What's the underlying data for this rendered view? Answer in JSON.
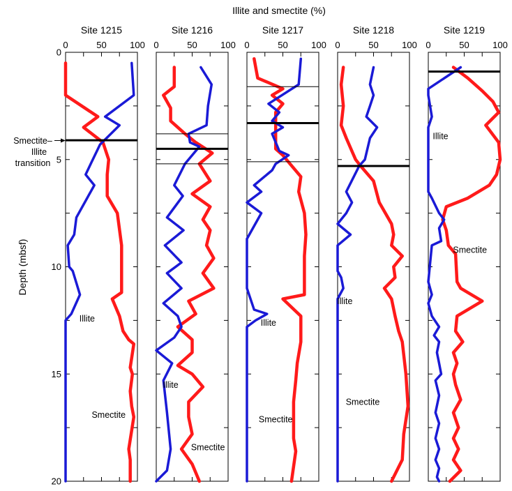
{
  "chart_data": {
    "type": "line",
    "title": "Illite and smectite (%)",
    "ylabel": "Depth (mbsf)",
    "y_range": [
      0,
      20
    ],
    "x_range": [
      0,
      100
    ],
    "y_ticks": [
      "0",
      "5",
      "10",
      "15",
      "20"
    ],
    "x_ticks": [
      "0",
      "50",
      "100"
    ],
    "colors": {
      "illite": "#1a1ad6",
      "smectite": "#ff1a1a",
      "transition": "#000000",
      "thin": "#000000"
    },
    "transition_annotation": {
      "line1": "Smectite–",
      "line2": "Illite",
      "line3": "transition"
    },
    "panels": [
      {
        "site": "Site 1215",
        "transitions_thick": [
          4.1
        ],
        "transitions_thin": [],
        "labels": [
          {
            "text": "Illite",
            "x": 30,
            "y": 12.4
          },
          {
            "text": "Smectite",
            "x": 60,
            "y": 16.9
          }
        ],
        "illite": [
          [
            92,
            0.5
          ],
          [
            95,
            2
          ],
          [
            55,
            3
          ],
          [
            75,
            3.4
          ],
          [
            48,
            4.3
          ],
          [
            35,
            5.2
          ],
          [
            28,
            5.7
          ],
          [
            40,
            6.2
          ],
          [
            30,
            6.8
          ],
          [
            15,
            7.7
          ],
          [
            12,
            8.5
          ],
          [
            3,
            9
          ],
          [
            5,
            10
          ],
          [
            10,
            10.2
          ],
          [
            20,
            11.3
          ],
          [
            8,
            12.2
          ],
          [
            0,
            12.5
          ],
          [
            0,
            20
          ]
        ],
        "smectite": [
          [
            0,
            0.5
          ],
          [
            0,
            2
          ],
          [
            45,
            3
          ],
          [
            25,
            3.5
          ],
          [
            52,
            4.2
          ],
          [
            60,
            5
          ],
          [
            58,
            5.7
          ],
          [
            58,
            6.7
          ],
          [
            72,
            7.5
          ],
          [
            78,
            9
          ],
          [
            78,
            11.2
          ],
          [
            65,
            11.5
          ],
          [
            75,
            12.3
          ],
          [
            80,
            13
          ],
          [
            88,
            13.4
          ],
          [
            95,
            13.6
          ],
          [
            90,
            14.7
          ],
          [
            93,
            15
          ],
          [
            90,
            15.8
          ],
          [
            92,
            16.5
          ],
          [
            95,
            17
          ],
          [
            88,
            18.5
          ],
          [
            90,
            19
          ],
          [
            90,
            20
          ]
        ]
      },
      {
        "site": "Site 1216",
        "transitions_thick": [
          4.5
        ],
        "transitions_thin": [
          3.8,
          5.2
        ],
        "labels": [
          {
            "text": "Illite",
            "x": 20,
            "y": 15.5
          },
          {
            "text": "Smectite",
            "x": 72,
            "y": 18.4
          }
        ],
        "illite": [
          [
            62,
            0.7
          ],
          [
            77,
            1.5
          ],
          [
            72,
            2.5
          ],
          [
            70,
            3.4
          ],
          [
            45,
            3.8
          ],
          [
            47,
            4.2
          ],
          [
            60,
            4.4
          ],
          [
            40,
            5.2
          ],
          [
            25,
            6.2
          ],
          [
            37,
            6.7
          ],
          [
            15,
            7.7
          ],
          [
            38,
            8.3
          ],
          [
            12,
            9
          ],
          [
            35,
            9.8
          ],
          [
            15,
            10.3
          ],
          [
            35,
            11
          ],
          [
            10,
            11.7
          ],
          [
            30,
            12.3
          ],
          [
            35,
            12.8
          ],
          [
            25,
            13.3
          ],
          [
            0,
            13.9
          ],
          [
            22,
            14.5
          ],
          [
            10,
            15.3
          ],
          [
            15,
            16.8
          ],
          [
            20,
            18.5
          ],
          [
            15,
            19.5
          ],
          [
            0,
            20
          ]
        ],
        "smectite": [
          [
            25,
            0.7
          ],
          [
            25,
            1.6
          ],
          [
            10,
            2
          ],
          [
            20,
            2.6
          ],
          [
            20,
            3.2
          ],
          [
            40,
            3.8
          ],
          [
            55,
            4.2
          ],
          [
            78,
            4.7
          ],
          [
            60,
            5.2
          ],
          [
            75,
            6
          ],
          [
            50,
            6.6
          ],
          [
            75,
            7.2
          ],
          [
            65,
            7.8
          ],
          [
            75,
            8.3
          ],
          [
            70,
            9
          ],
          [
            80,
            9.6
          ],
          [
            65,
            10.3
          ],
          [
            80,
            11
          ],
          [
            45,
            11.6
          ],
          [
            55,
            12.2
          ],
          [
            30,
            12.8
          ],
          [
            50,
            13.4
          ],
          [
            50,
            14
          ],
          [
            30,
            14.6
          ],
          [
            50,
            15
          ],
          [
            65,
            15.6
          ],
          [
            45,
            16.3
          ],
          [
            45,
            17
          ],
          [
            50,
            17.8
          ],
          [
            35,
            18.5
          ],
          [
            50,
            19.2
          ],
          [
            60,
            20
          ]
        ]
      },
      {
        "site": "Site 1217",
        "transitions_thick": [
          3.3
        ],
        "transitions_thin": [
          1.6,
          5.1
        ],
        "labels": [
          {
            "text": "Illite",
            "x": 30,
            "y": 12.6
          },
          {
            "text": "Smectite",
            "x": 40,
            "y": 17.1
          }
        ],
        "illite": [
          [
            75,
            0.3
          ],
          [
            72,
            1.5
          ],
          [
            30,
            2.4
          ],
          [
            45,
            2.8
          ],
          [
            35,
            3.2
          ],
          [
            50,
            3.5
          ],
          [
            35,
            3.8
          ],
          [
            45,
            4.6
          ],
          [
            58,
            4.8
          ],
          [
            40,
            5.2
          ],
          [
            35,
            5.5
          ],
          [
            10,
            6.2
          ],
          [
            20,
            6.5
          ],
          [
            0,
            7
          ],
          [
            20,
            7.5
          ],
          [
            0,
            8.7
          ],
          [
            0,
            11
          ],
          [
            10,
            12
          ],
          [
            28,
            12.2
          ],
          [
            12,
            12.5
          ],
          [
            0,
            12.8
          ],
          [
            0,
            20
          ]
        ],
        "smectite": [
          [
            10,
            0.3
          ],
          [
            15,
            1.2
          ],
          [
            50,
            1.7
          ],
          [
            35,
            2
          ],
          [
            50,
            2.4
          ],
          [
            40,
            2.8
          ],
          [
            40,
            3.4
          ],
          [
            40,
            4.5
          ],
          [
            50,
            4.8
          ],
          [
            60,
            5.2
          ],
          [
            75,
            5.8
          ],
          [
            72,
            6.5
          ],
          [
            80,
            7.5
          ],
          [
            82,
            8.5
          ],
          [
            80,
            9.5
          ],
          [
            80,
            10.5
          ],
          [
            80,
            11.3
          ],
          [
            50,
            11.5
          ],
          [
            75,
            12.3
          ],
          [
            75,
            13.5
          ],
          [
            70,
            14.5
          ],
          [
            68,
            15.3
          ],
          [
            65,
            16.3
          ],
          [
            65,
            17.3
          ],
          [
            65,
            18
          ],
          [
            68,
            18.6
          ],
          [
            62,
            20
          ]
        ]
      },
      {
        "site": "Site 1218",
        "transitions_thick": [
          5.3
        ],
        "transitions_thin": [],
        "labels": [
          {
            "text": "Illite",
            "x": 10,
            "y": 11.6
          },
          {
            "text": "Smectite",
            "x": 35,
            "y": 16.3
          }
        ],
        "illite": [
          [
            50,
            0.7
          ],
          [
            45,
            1.5
          ],
          [
            50,
            2
          ],
          [
            45,
            2.5
          ],
          [
            40,
            3
          ],
          [
            55,
            3.5
          ],
          [
            45,
            4
          ],
          [
            38,
            5
          ],
          [
            30,
            5.3
          ],
          [
            12,
            6.5
          ],
          [
            20,
            7
          ],
          [
            12,
            7.5
          ],
          [
            0,
            8
          ],
          [
            18,
            8.5
          ],
          [
            0,
            9
          ],
          [
            0,
            10.2
          ],
          [
            5,
            10.5
          ],
          [
            8,
            11
          ],
          [
            0,
            11.5
          ],
          [
            0,
            20
          ]
        ],
        "smectite": [
          [
            8,
            0.7
          ],
          [
            5,
            1.5
          ],
          [
            8,
            2.5
          ],
          [
            5,
            3.4
          ],
          [
            12,
            4
          ],
          [
            25,
            5
          ],
          [
            32,
            5.3
          ],
          [
            50,
            6
          ],
          [
            58,
            7
          ],
          [
            75,
            8
          ],
          [
            78,
            8.5
          ],
          [
            75,
            9
          ],
          [
            90,
            9.5
          ],
          [
            78,
            10
          ],
          [
            80,
            10.5
          ],
          [
            65,
            11
          ],
          [
            75,
            11.5
          ],
          [
            80,
            12.3
          ],
          [
            85,
            13
          ],
          [
            90,
            13.5
          ],
          [
            95,
            15
          ],
          [
            98,
            16.5
          ],
          [
            92,
            17.8
          ],
          [
            90,
            19
          ],
          [
            75,
            20
          ]
        ]
      },
      {
        "site": "Site 1219",
        "transitions_thick": [
          0.9
        ],
        "transitions_thin": [],
        "labels": [
          {
            "text": "Illite",
            "x": 17,
            "y": 3.9
          },
          {
            "text": "Smectite",
            "x": 58,
            "y": 9.2
          }
        ],
        "illite": [
          [
            45,
            0.7
          ],
          [
            0,
            1.7
          ],
          [
            0,
            2
          ],
          [
            5,
            3
          ],
          [
            0,
            3.5
          ],
          [
            0,
            6.5
          ],
          [
            5,
            6.8
          ],
          [
            15,
            7.5
          ],
          [
            22,
            7.8
          ],
          [
            15,
            8.2
          ],
          [
            18,
            8.8
          ],
          [
            5,
            9
          ],
          [
            0,
            10.7
          ],
          [
            5,
            11.3
          ],
          [
            0,
            11.7
          ],
          [
            5,
            12.3
          ],
          [
            15,
            12.8
          ],
          [
            8,
            13.2
          ],
          [
            15,
            13.5
          ],
          [
            12,
            14
          ],
          [
            15,
            14.5
          ],
          [
            18,
            15
          ],
          [
            10,
            15.3
          ],
          [
            15,
            16
          ],
          [
            10,
            16.8
          ],
          [
            15,
            17.3
          ],
          [
            10,
            18
          ],
          [
            15,
            18.5
          ],
          [
            10,
            19
          ],
          [
            15,
            19.4
          ],
          [
            12,
            19.8
          ],
          [
            15,
            20
          ]
        ],
        "smectite": [
          [
            35,
            0.7
          ],
          [
            55,
            1.2
          ],
          [
            75,
            1.8
          ],
          [
            90,
            2.3
          ],
          [
            98,
            2.8
          ],
          [
            80,
            3.4
          ],
          [
            98,
            4.2
          ],
          [
            100,
            5
          ],
          [
            95,
            5.7
          ],
          [
            85,
            6.2
          ],
          [
            55,
            6.8
          ],
          [
            25,
            7.2
          ],
          [
            20,
            7.8
          ],
          [
            25,
            8.3
          ],
          [
            28,
            9
          ],
          [
            38,
            9.4
          ],
          [
            40,
            10.7
          ],
          [
            45,
            11
          ],
          [
            75,
            11.6
          ],
          [
            40,
            12.3
          ],
          [
            38,
            13
          ],
          [
            48,
            13.5
          ],
          [
            35,
            14
          ],
          [
            40,
            14.5
          ],
          [
            35,
            15
          ],
          [
            38,
            15.5
          ],
          [
            45,
            16.2
          ],
          [
            35,
            16.8
          ],
          [
            42,
            17.5
          ],
          [
            35,
            18
          ],
          [
            42,
            18.5
          ],
          [
            35,
            19
          ],
          [
            45,
            19.5
          ],
          [
            30,
            20
          ]
        ]
      }
    ]
  }
}
